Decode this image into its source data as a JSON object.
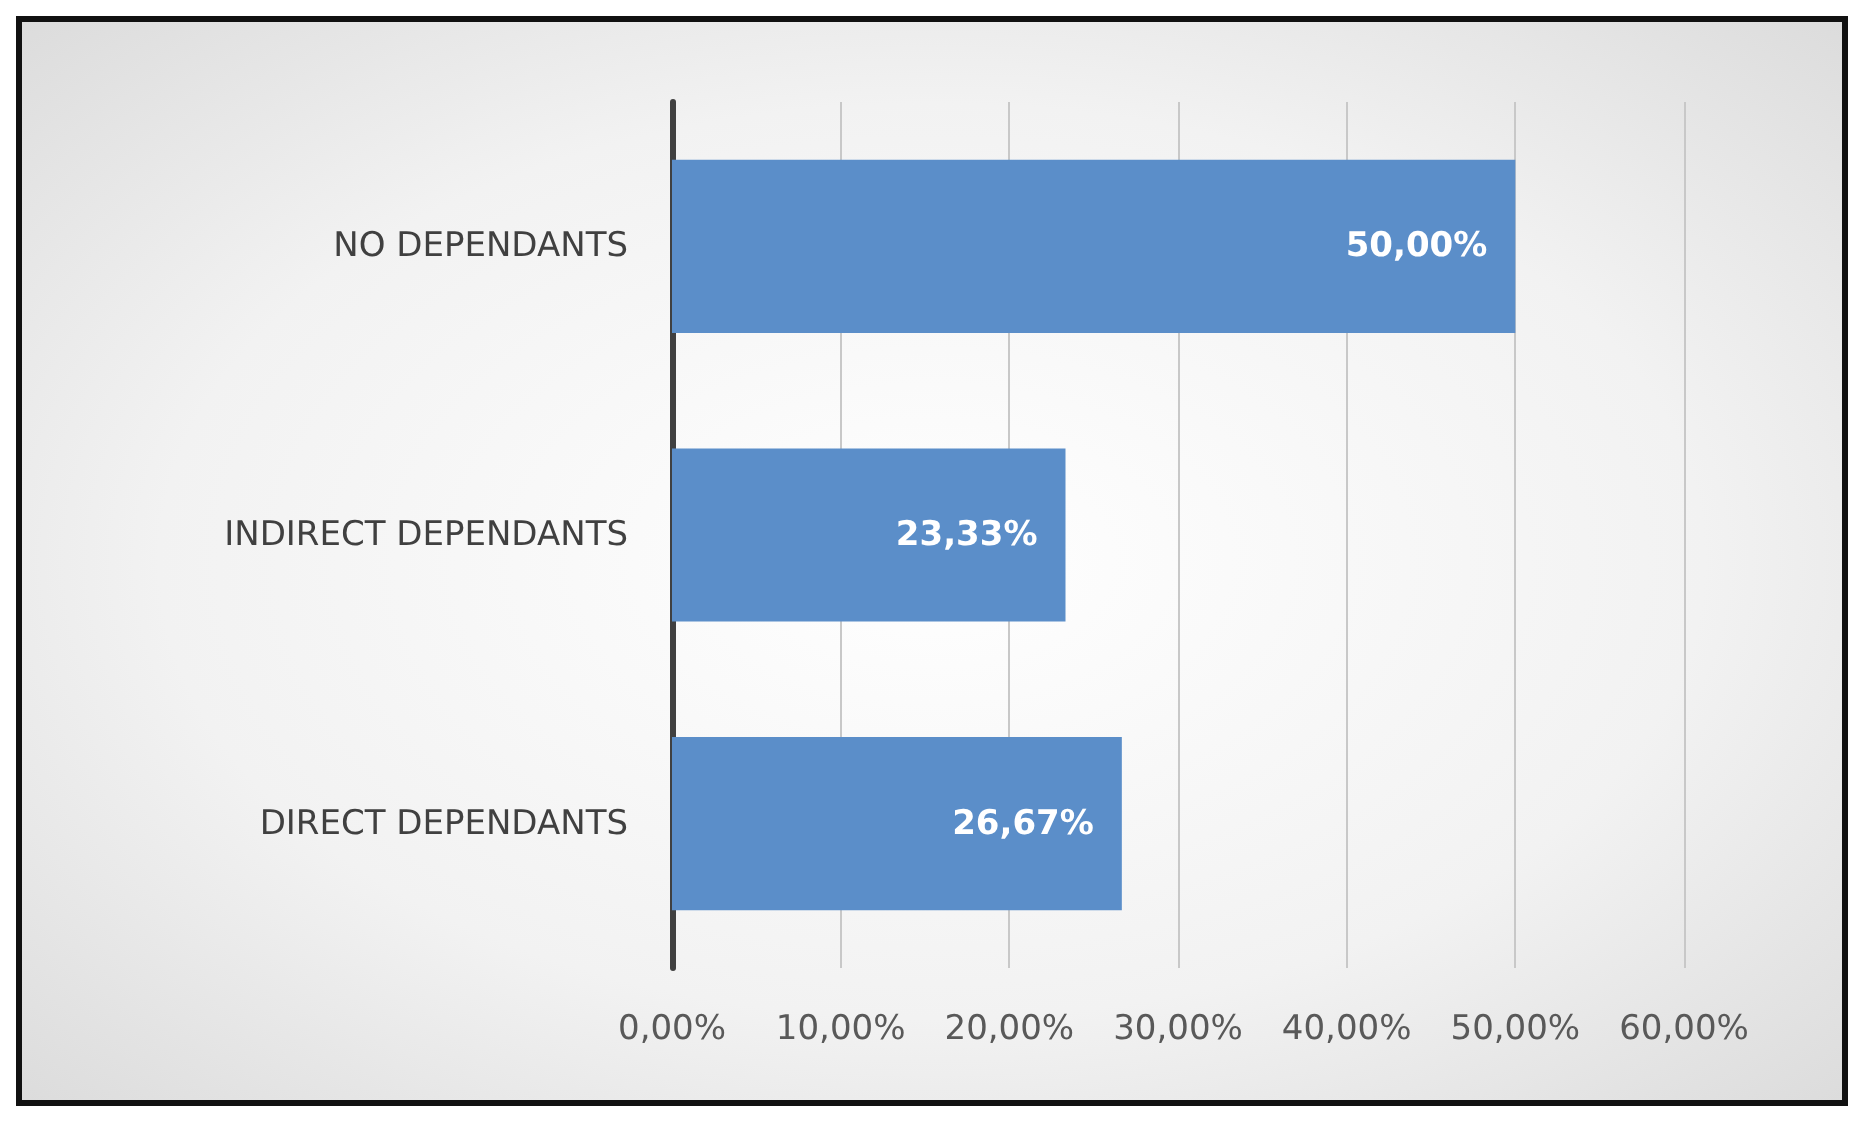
{
  "chart_data": {
    "type": "bar",
    "orientation": "horizontal",
    "categories": [
      "NO DEPENDANTS",
      "INDIRECT DEPENDANTS",
      "DIRECT DEPENDANTS"
    ],
    "values": [
      50,
      23.33,
      26.67
    ],
    "value_labels": [
      "50,00%",
      "23,33%",
      "26,67%"
    ],
    "color": "#5b8ec9",
    "xlim": [
      0,
      60
    ],
    "xticks": [
      {
        "value": 0,
        "label": "0,00%"
      },
      {
        "value": 10,
        "label": "10,00%"
      },
      {
        "value": 20,
        "label": "20,00%"
      },
      {
        "value": 30,
        "label": "30,00%"
      },
      {
        "value": 40,
        "label": "40,00%"
      },
      {
        "value": 50,
        "label": "50,00%"
      },
      {
        "value": 60,
        "label": "60,00%"
      }
    ],
    "grid": "x"
  }
}
